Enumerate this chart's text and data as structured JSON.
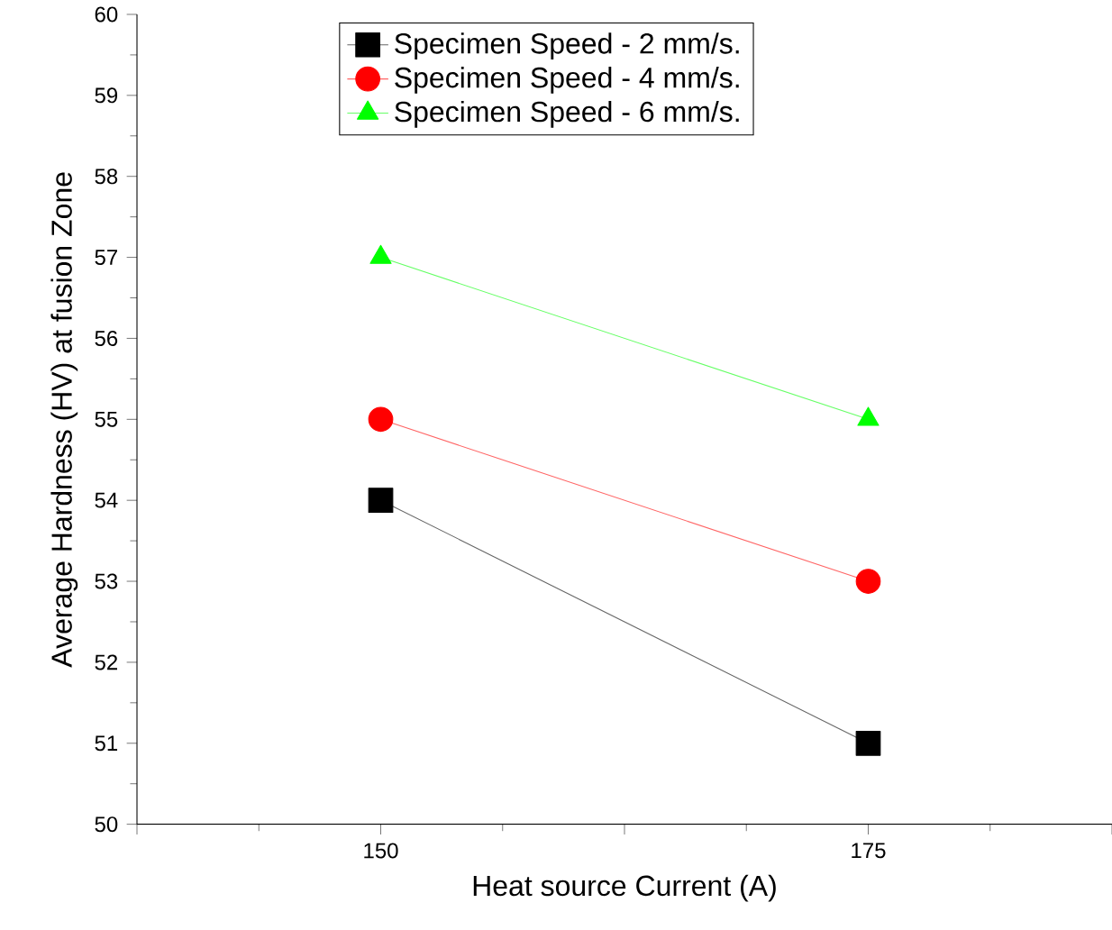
{
  "chart_data": {
    "type": "line",
    "xlabel": "Heat source Current (A)",
    "ylabel": "Average Hardness (HV) at fusion Zone",
    "x": [
      150,
      175
    ],
    "series": [
      {
        "name": "Specimen Speed - 2 mm/s.",
        "color": "#000000",
        "marker": "square",
        "values": [
          54,
          51
        ]
      },
      {
        "name": "Specimen Speed - 4 mm/s.",
        "color": "#ff0000",
        "marker": "circle",
        "values": [
          55,
          53
        ]
      },
      {
        "name": "Specimen Speed - 6 mm/s.",
        "color": "#00ff00",
        "marker": "triangle",
        "values": [
          57,
          55
        ]
      }
    ],
    "xlim": [
      137.5,
      187.5
    ],
    "ylim": [
      50,
      60
    ],
    "xticks": [
      {
        "value": 137.5,
        "label": null
      },
      150,
      {
        "value": 162.5,
        "label": null
      },
      175,
      {
        "value": 187.5,
        "label": null
      }
    ],
    "yticks": [
      50,
      51,
      52,
      53,
      54,
      55,
      56,
      57,
      58,
      59,
      60
    ],
    "legend": "top",
    "line_style": "solid"
  }
}
